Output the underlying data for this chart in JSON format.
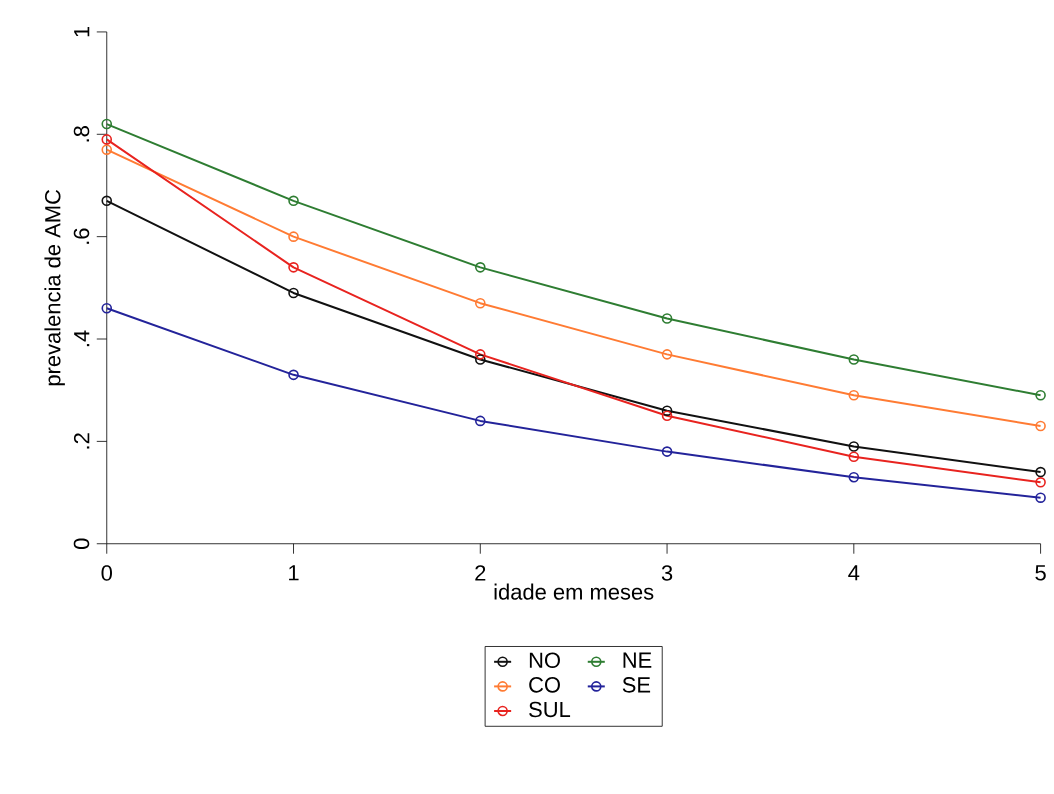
{
  "chart_data": {
    "type": "line",
    "xlabel": "idade em meses",
    "ylabel": "prevalencia de AMC",
    "x": [
      0,
      1,
      2,
      3,
      4,
      5
    ],
    "series": [
      {
        "name": "NO",
        "color": "#111111",
        "values": [
          0.67,
          0.49,
          0.36,
          0.26,
          0.19,
          0.14
        ]
      },
      {
        "name": "NE",
        "color": "#2e7d32",
        "values": [
          0.82,
          0.67,
          0.54,
          0.44,
          0.36,
          0.29
        ]
      },
      {
        "name": "CO",
        "color": "#ff7b33",
        "values": [
          0.77,
          0.6,
          0.47,
          0.37,
          0.29,
          0.23
        ]
      },
      {
        "name": "SE",
        "color": "#23239a",
        "values": [
          0.46,
          0.33,
          0.24,
          0.18,
          0.13,
          0.09
        ]
      },
      {
        "name": "SUL",
        "color": "#e8231f",
        "values": [
          0.79,
          0.54,
          0.37,
          0.25,
          0.17,
          0.12
        ]
      }
    ],
    "xlim": [
      0,
      5
    ],
    "ylim": [
      0,
      1
    ],
    "xticks": [
      0,
      1,
      2,
      3,
      4,
      5
    ],
    "yticks": [
      0,
      {
        "value": 0.2,
        "label": ".2"
      },
      {
        "value": 0.4,
        "label": ".4"
      },
      {
        "value": 0.6,
        "label": ".6"
      },
      {
        "value": 0.8,
        "label": ".8"
      },
      1
    ],
    "grid": false,
    "legend": "bottom",
    "marker": "circle",
    "line_style": "solid"
  }
}
